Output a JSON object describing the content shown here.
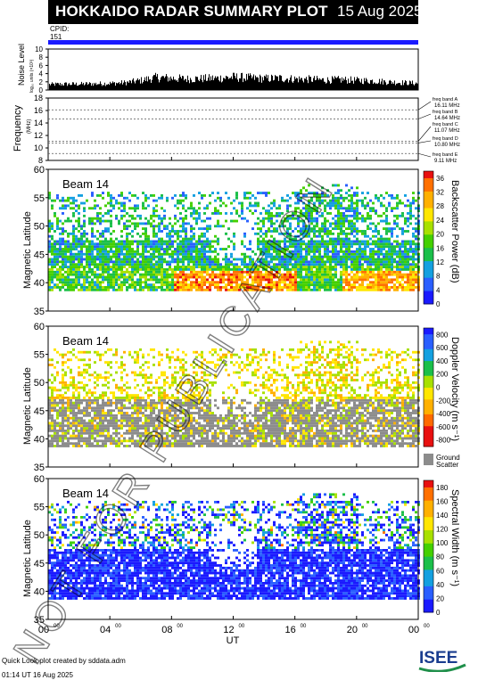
{
  "title": "HOKKAIDO RADAR SUMMARY PLOT",
  "date": "15 Aug 2025",
  "cpid_label": "CPID:",
  "cpid_value": "151",
  "noise_panel": {
    "ylabel": "Noise Level",
    "ylabel_sub": "log₁₀ units (×10³)",
    "ticks": [
      "0",
      "2",
      "4",
      "6",
      "8",
      "10"
    ],
    "ylim": [
      0,
      10
    ]
  },
  "freq_panel": {
    "ylabel": "Frequency",
    "ylabel_sub": "(MHz)",
    "ticks": [
      "8",
      "10",
      "12",
      "14",
      "16",
      "18"
    ],
    "ylim": [
      8,
      18
    ],
    "bands": [
      {
        "label": "freq band A",
        "value": "16.11 MHz",
        "mhz": 16.11
      },
      {
        "label": "freq band B",
        "value": "14.64 MHz",
        "mhz": 14.64
      },
      {
        "label": "freq band C",
        "value": "11.07 MHz",
        "mhz": 11.07
      },
      {
        "label": "freq band D",
        "value": "10.80 MHz",
        "mhz": 10.8
      },
      {
        "label": "freq band E",
        "value": "9.11 MHz",
        "mhz": 9.11
      }
    ]
  },
  "panels": [
    {
      "beam": "Beam 14",
      "ylabel": "Magnetic Latitude",
      "ticks": [
        "35",
        "40",
        "45",
        "50",
        "55",
        "60"
      ],
      "ylim": [
        35,
        60
      ],
      "cbar_label": "Backscatter Power (dB)",
      "cbar_ticks": [
        "0",
        "4",
        "8",
        "12",
        "16",
        "20",
        "24",
        "28",
        "32",
        "36"
      ],
      "cbar_range": [
        0,
        38
      ],
      "kind": "power"
    },
    {
      "beam": "Beam 14",
      "ylabel": "Magnetic Latitude",
      "ticks": [
        "35",
        "40",
        "45",
        "50",
        "55",
        "60"
      ],
      "ylim": [
        35,
        60
      ],
      "cbar_label": "Doppler Velocity (m s⁻¹)",
      "cbar_ticks": [
        "800",
        "600",
        "400",
        "200",
        "0",
        "-200",
        "-400",
        "-600",
        "-800"
      ],
      "cbar_range": [
        -900,
        900
      ],
      "ground_label": "Ground",
      "ground_label2": "Scatter",
      "kind": "velocity"
    },
    {
      "beam": "Beam 14",
      "ylabel": "Magnetic Latitude",
      "ticks": [
        "35",
        "40",
        "45",
        "50",
        "55",
        "60"
      ],
      "ylim": [
        35,
        60
      ],
      "cbar_label": "Spectral Width (m s⁻¹)",
      "cbar_ticks": [
        "0",
        "20",
        "40",
        "60",
        "80",
        "100",
        "120",
        "140",
        "160",
        "180"
      ],
      "cbar_range": [
        0,
        190
      ],
      "kind": "width"
    }
  ],
  "x_axis": {
    "ticks": [
      "00",
      "04",
      "08",
      "12",
      "16",
      "20",
      "00"
    ],
    "tick_sup": "00",
    "label": "UT",
    "xlim": [
      0,
      24
    ]
  },
  "footer": {
    "line1": "Quick Look plot created by sddata.adm",
    "line2": "01:14 UT 16 Aug 2025"
  },
  "watermark": "NOT FOR PUBLICATION",
  "logo": "ISEE",
  "colors": {
    "ground_scatter": "#8c8c8c",
    "cpid_bar": "#1a1aff",
    "watermark": "rgba(0,0,0,0.45)"
  },
  "chart_data": [
    {
      "type": "bar",
      "title": "Noise Level",
      "ylim": [
        0,
        10
      ],
      "xlim": [
        0,
        24
      ],
      "note_series": "noise level vs UT",
      "x": [
        0,
        1,
        2,
        3,
        4,
        5,
        6,
        7,
        8,
        9,
        10,
        11,
        12,
        13,
        14,
        15,
        16,
        17,
        18,
        19,
        20,
        21,
        22,
        23,
        24
      ],
      "values": [
        1.5,
        1.6,
        1.6,
        1.7,
        1.8,
        2.0,
        2.6,
        3.4,
        3.2,
        3.0,
        3.1,
        3.2,
        3.5,
        3.3,
        3.1,
        3.2,
        3.0,
        2.9,
        2.7,
        2.8,
        2.6,
        2.5,
        2.2,
        2.0,
        1.8
      ]
    },
    {
      "type": "heatmap",
      "title": "Beam 14",
      "ylabel": "Magnetic Latitude",
      "ylim": [
        35,
        60
      ],
      "xlim": [
        0,
        24
      ],
      "colorbar": "Backscatter Power (dB)",
      "crange": [
        0,
        38
      ]
    },
    {
      "type": "heatmap",
      "title": "Beam 14",
      "ylabel": "Magnetic Latitude",
      "ylim": [
        35,
        60
      ],
      "xlim": [
        0,
        24
      ],
      "colorbar": "Doppler Velocity (m s⁻¹)",
      "crange": [
        -900,
        900
      ]
    },
    {
      "type": "heatmap",
      "title": "Beam 14",
      "ylabel": "Magnetic Latitude",
      "ylim": [
        35,
        60
      ],
      "xlim": [
        0,
        24
      ],
      "colorbar": "Spectral Width (m s⁻¹)",
      "crange": [
        0,
        190
      ]
    }
  ]
}
